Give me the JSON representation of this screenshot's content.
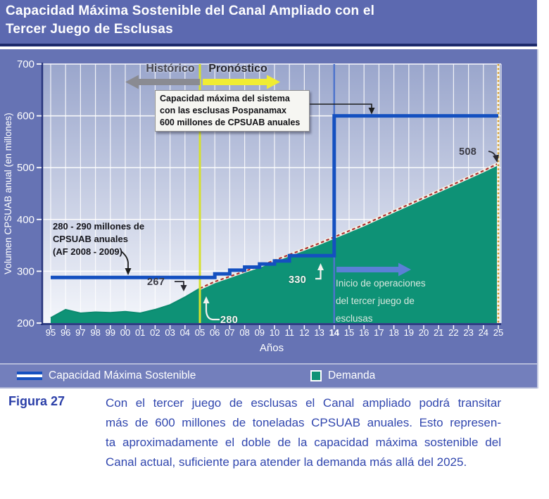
{
  "header": {
    "title_line1": "Capacidad Máxima Sostenible del Canal Ampliado con el",
    "title_line2": "Tercer Juego de Esclusas"
  },
  "chart": {
    "y_axis_title": "Volumen CPSUAB anual (en millones)",
    "x_axis_title": "Años",
    "period_labels": {
      "historical": "Histórico",
      "forecast": "Pronóstico"
    },
    "annotations": {
      "capacity_box": [
        "Capacidad máxima del sistema",
        "con las esclusas Pospanamax",
        "600 millones de CPSUAB anuales"
      ],
      "sustainable_note": [
        "280 - 290 millones de",
        "CPSUAB anuales",
        "(AF 2008 - 2009)"
      ],
      "value_267": "267",
      "value_280": "280",
      "value_330": "330",
      "value_508": "508",
      "inicio": [
        "Inicio de operaciones",
        "del tercer juego de",
        "esclusas"
      ]
    },
    "legend": [
      {
        "label": "Capacidad Máxima Sostenible"
      },
      {
        "label": "Demanda"
      }
    ]
  },
  "chart_data": {
    "type": "area",
    "x_labels": [
      "95",
      "96",
      "97",
      "98",
      "99",
      "00",
      "01",
      "02",
      "03",
      "04",
      "05",
      "06",
      "07",
      "08",
      "09",
      "10",
      "11",
      "12",
      "13",
      "14",
      "15",
      "16",
      "17",
      "18",
      "19",
      "20",
      "21",
      "22",
      "23",
      "24",
      "25"
    ],
    "bold_x_label": "14",
    "xlabel": "Años",
    "ylabel": "Volumen CPSUAB anual (en millones)",
    "ylim": [
      200,
      700
    ],
    "y_ticks": [
      200,
      300,
      400,
      500,
      600,
      700
    ],
    "grid": true,
    "legend_position": "bottom",
    "series": [
      {
        "name": "Demanda",
        "type": "area",
        "values": [
          210,
          226,
          219,
          221,
          220,
          222,
          219,
          226,
          235,
          250,
          267,
          280,
          290,
          300,
          310,
          321,
          332,
          343,
          354,
          366,
          378,
          390,
          403,
          416,
          429,
          442,
          455,
          468,
          481,
          494,
          508
        ]
      },
      {
        "name": "Demanda pronosticada (línea discontinua)",
        "type": "dashed-line",
        "start_label": "05",
        "values": [
          267,
          280,
          290,
          300,
          310,
          321,
          332,
          343,
          354,
          366,
          378,
          390,
          403,
          416,
          429,
          442,
          455,
          468,
          481,
          494,
          508
        ]
      },
      {
        "name": "Capacidad Máxima Sostenible",
        "type": "step-line",
        "steps": [
          {
            "from": "95",
            "to": "06",
            "value": 288
          },
          {
            "from": "06",
            "to": "07",
            "value": 295
          },
          {
            "from": "07",
            "to": "08",
            "value": 302
          },
          {
            "from": "08",
            "to": "09",
            "value": 308
          },
          {
            "from": "09",
            "to": "10",
            "value": 314
          },
          {
            "from": "10",
            "to": "11",
            "value": 320
          },
          {
            "from": "11",
            "to": "14",
            "value": 330
          },
          {
            "from": "14",
            "to": "25",
            "value": 600
          }
        ]
      }
    ],
    "reference_lines": [
      {
        "axis": "x",
        "at": "05",
        "style": "solid",
        "color": "#d6e02e"
      },
      {
        "axis": "x",
        "at": "14",
        "style": "solid",
        "color": "#4e74cc"
      },
      {
        "axis": "x",
        "at": "25",
        "style": "dotted",
        "color": "#cf9b35"
      }
    ],
    "colors": {
      "demand_area": "#0e9276",
      "forecast_dash": "#ab3030",
      "capacity_line": "#1450c0",
      "plot_bg_top": "#9aa6cc",
      "plot_bg_bottom": "#f4f6fb",
      "axis": "#27347c",
      "panel": "#6673b4"
    }
  },
  "caption": {
    "label": "Figura 27",
    "lines": [
      "Con el tercer juego de esclusas el Canal ampliado podrá transitar",
      "más de 600 millones de toneladas CPSUAB anuales. Esto represen-",
      "ta aproximadamente el doble de la capacidad máxima sostenible del",
      "Canal actual, suficiente para atender la demanda más allá del 2025."
    ]
  }
}
